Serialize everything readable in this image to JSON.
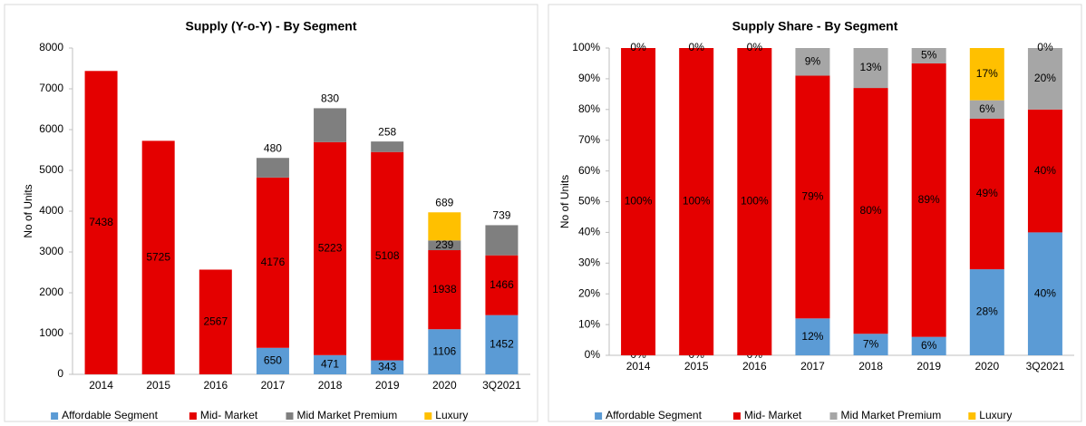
{
  "chart_data": [
    {
      "type": "stacked_bar",
      "title": "Supply (Y-o-Y) - By Segment",
      "ylabel": "No of Units",
      "categories": [
        "2014",
        "2015",
        "2016",
        "2017",
        "2018",
        "2019",
        "2020",
        "3Q2021"
      ],
      "ylim": [
        0,
        8000
      ],
      "yticks": [
        0,
        1000,
        2000,
        3000,
        4000,
        5000,
        6000,
        7000,
        8000
      ],
      "legend": "bottom",
      "series": [
        {
          "name": "Affordable Segment",
          "color": "#5b9bd5",
          "values": [
            null,
            null,
            null,
            650,
            471,
            343,
            1106,
            1452
          ]
        },
        {
          "name": "Mid- Market",
          "color": "#e40000",
          "values": [
            7438,
            5725,
            2567,
            4176,
            5223,
            5108,
            1938,
            1466
          ]
        },
        {
          "name": "Mid Market Premium",
          "color": "#7f7f7f",
          "values": [
            null,
            null,
            null,
            480,
            830,
            258,
            239,
            739
          ]
        },
        {
          "name": "Luxury",
          "color": "#ffc000",
          "values": [
            null,
            null,
            null,
            null,
            null,
            null,
            689,
            null
          ]
        }
      ]
    },
    {
      "type": "stacked_bar",
      "title": "Supply Share - By Segment",
      "ylabel": "No of Units",
      "categories": [
        "2014",
        "2015",
        "2016",
        "2017",
        "2018",
        "2019",
        "2020",
        "3Q2021"
      ],
      "ylim": [
        0,
        100
      ],
      "yticks": [
        {
          "value": 0,
          "label": "0%"
        },
        {
          "value": 10,
          "label": "10%"
        },
        {
          "value": 20,
          "label": "20%"
        },
        {
          "value": 30,
          "label": "30%"
        },
        {
          "value": 40,
          "label": "40%"
        },
        {
          "value": 50,
          "label": "50%"
        },
        {
          "value": 60,
          "label": "60%"
        },
        {
          "value": 70,
          "label": "70%"
        },
        {
          "value": 80,
          "label": "80%"
        },
        {
          "value": 90,
          "label": "90%"
        },
        {
          "value": 100,
          "label": "100%"
        }
      ],
      "legend": "bottom",
      "series": [
        {
          "name": "Affordable Segment",
          "color": "#5b9bd5",
          "values": [
            0,
            0,
            0,
            12,
            7,
            6,
            28,
            40
          ],
          "value_labels": [
            "0%",
            "0%",
            "0%",
            "12%",
            "7%",
            "6%",
            "28%",
            "40%"
          ]
        },
        {
          "name": "Mid- Market",
          "color": "#e40000",
          "values": [
            100,
            100,
            100,
            79,
            80,
            89,
            49,
            40
          ],
          "value_labels": [
            "100%",
            "100%",
            "100%",
            "79%",
            "80%",
            "89%",
            "49%",
            "40%"
          ]
        },
        {
          "name": "Mid Market Premium",
          "color": "#a6a6a6",
          "values": [
            0,
            0,
            0,
            9,
            13,
            5,
            6,
            20
          ],
          "value_labels": [
            "0%",
            "0%",
            "0%",
            "9%",
            "13%",
            "5%",
            "6%",
            "20%"
          ]
        },
        {
          "name": "Luxury",
          "color": "#ffc000",
          "values": [
            null,
            null,
            null,
            null,
            null,
            null,
            17,
            0
          ],
          "value_labels": [
            null,
            null,
            null,
            null,
            null,
            null,
            "17%",
            "0%"
          ]
        }
      ]
    }
  ]
}
